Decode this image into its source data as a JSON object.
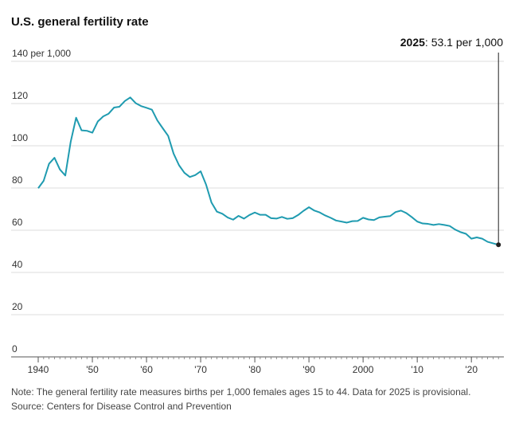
{
  "chart_data": {
    "type": "line",
    "title": "U.S. general fertility rate",
    "annotation_year": "2025",
    "annotation_text": ": 53.1 per 1,000",
    "note": "Note: The general fertility rate measures births per 1,000 females ages 15 to 44. Data for 2025 is provisional.",
    "source": "Source: Centers for Disease Control and Prevention",
    "x": [
      1940,
      1941,
      1942,
      1943,
      1944,
      1945,
      1946,
      1947,
      1948,
      1949,
      1950,
      1951,
      1952,
      1953,
      1954,
      1955,
      1956,
      1957,
      1958,
      1959,
      1960,
      1961,
      1962,
      1963,
      1964,
      1965,
      1966,
      1967,
      1968,
      1969,
      1970,
      1971,
      1972,
      1973,
      1974,
      1975,
      1976,
      1977,
      1978,
      1979,
      1980,
      1981,
      1982,
      1983,
      1984,
      1985,
      1986,
      1987,
      1988,
      1989,
      1990,
      1991,
      1992,
      1993,
      1994,
      1995,
      1996,
      1997,
      1998,
      1999,
      2000,
      2001,
      2002,
      2003,
      2004,
      2005,
      2006,
      2007,
      2008,
      2009,
      2010,
      2011,
      2012,
      2013,
      2014,
      2015,
      2016,
      2017,
      2018,
      2019,
      2020,
      2021,
      2022,
      2023,
      2024,
      2025
    ],
    "series": [
      {
        "name": "General fertility rate",
        "color": "#1f9bb0",
        "values": [
          79.9,
          83.4,
          91.5,
          94.3,
          88.8,
          85.9,
          101.9,
          113.3,
          107.3,
          107.1,
          106.2,
          111.5,
          113.9,
          115.2,
          118.1,
          118.5,
          121.2,
          122.9,
          120.2,
          118.8,
          118.0,
          117.1,
          112.0,
          108.3,
          104.7,
          96.3,
          90.8,
          87.2,
          85.2,
          86.1,
          87.9,
          81.6,
          73.1,
          68.8,
          67.8,
          66.0,
          65.0,
          66.8,
          65.5,
          67.2,
          68.4,
          67.3,
          67.3,
          65.7,
          65.5,
          66.3,
          65.4,
          65.7,
          67.2,
          69.2,
          70.9,
          69.3,
          68.4,
          67.0,
          65.9,
          64.6,
          64.1,
          63.6,
          64.3,
          64.4,
          65.9,
          65.1,
          64.8,
          66.1,
          66.4,
          66.7,
          68.6,
          69.3,
          68.1,
          66.2,
          64.1,
          63.2,
          63.0,
          62.5,
          62.9,
          62.5,
          62.0,
          60.3,
          59.1,
          58.3,
          56.0,
          56.6,
          56.0,
          54.5,
          53.8,
          53.1
        ]
      }
    ],
    "xlim": [
      1935,
      2026
    ],
    "ylim": [
      0,
      140
    ],
    "xticks": [
      {
        "value": 1940,
        "label": "1940"
      },
      {
        "value": 1950,
        "label": "'50"
      },
      {
        "value": 1960,
        "label": "'60"
      },
      {
        "value": 1970,
        "label": "'70"
      },
      {
        "value": 1980,
        "label": "'80"
      },
      {
        "value": 1990,
        "label": "'90"
      },
      {
        "value": 2000,
        "label": "2000"
      },
      {
        "value": 2010,
        "label": "'10"
      },
      {
        "value": 2020,
        "label": "'20"
      }
    ],
    "yticks": [
      0,
      20,
      40,
      60,
      80,
      100,
      120,
      {
        "value": 140,
        "label": "140 per 1,000"
      }
    ],
    "grid": true
  }
}
